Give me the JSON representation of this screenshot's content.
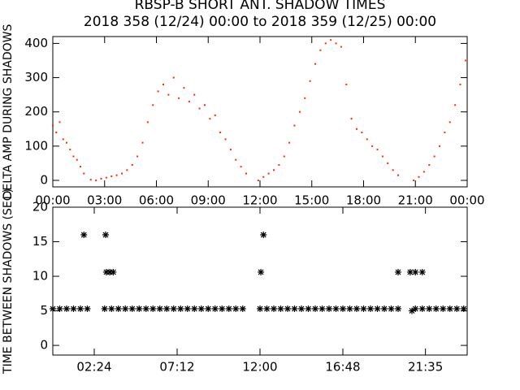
{
  "chart_data": [
    {
      "type": "scatter",
      "title": "RBSP-B SHORT ANT. SHADOW TIMES",
      "subtitle": "2018 358 (12/24) 00:00 to 2018 359 (12/25) 00:00",
      "ylabel": "DELTA AMP DURING SHADOWS",
      "color": "#ff2a00",
      "marker": "dot",
      "xlim": [
        0,
        24
      ],
      "ylim": [
        -19,
        420
      ],
      "xticks": [
        {
          "value": 0,
          "label": "00:00"
        },
        {
          "value": 3,
          "label": "03:00"
        },
        {
          "value": 6,
          "label": "06:00"
        },
        {
          "value": 9,
          "label": "09:00"
        },
        {
          "value": 12,
          "label": "12:00"
        },
        {
          "value": 15,
          "label": "15:00"
        },
        {
          "value": 18,
          "label": "18:00"
        },
        {
          "value": 21,
          "label": "21:00"
        },
        {
          "value": 24,
          "label": "00:00"
        }
      ],
      "yticks": [
        0,
        100,
        200,
        300,
        400
      ],
      "x": [
        0,
        0.2,
        0.4,
        0.6,
        0.8,
        1.0,
        1.2,
        1.4,
        1.6,
        1.8,
        2.2,
        2.5,
        2.8,
        3.1,
        3.4,
        3.7,
        4.0,
        4.3,
        4.6,
        4.9,
        5.2,
        5.5,
        5.8,
        6.1,
        6.4,
        6.7,
        7.0,
        7.3,
        7.6,
        7.9,
        8.2,
        8.5,
        8.8,
        9.1,
        9.4,
        9.7,
        10.0,
        10.3,
        10.6,
        10.9,
        11.2,
        11.9,
        12.2,
        12.5,
        12.8,
        13.1,
        13.4,
        13.7,
        14.0,
        14.3,
        14.6,
        14.9,
        15.2,
        15.5,
        15.8,
        16.1,
        16.4,
        16.7,
        17.0,
        17.3,
        17.6,
        17.9,
        18.2,
        18.5,
        18.8,
        19.1,
        19.4,
        19.7,
        20.0,
        20.9,
        21.2,
        21.5,
        21.8,
        22.1,
        22.4,
        22.7,
        23.0,
        23.3,
        23.6,
        23.9
      ],
      "values": [
        160,
        140,
        170,
        120,
        110,
        90,
        70,
        60,
        40,
        20,
        2,
        0,
        5,
        8,
        12,
        15,
        20,
        30,
        45,
        70,
        110,
        170,
        220,
        260,
        280,
        250,
        300,
        240,
        270,
        230,
        250,
        210,
        220,
        180,
        190,
        140,
        120,
        90,
        60,
        40,
        20,
        0,
        10,
        20,
        30,
        45,
        70,
        110,
        160,
        200,
        240,
        290,
        340,
        380,
        400,
        410,
        400,
        390,
        280,
        180,
        150,
        140,
        120,
        100,
        90,
        70,
        50,
        30,
        15,
        0,
        10,
        25,
        45,
        70,
        100,
        140,
        170,
        220,
        280,
        350
      ]
    },
    {
      "type": "scatter",
      "ylabel": "TIME BETWEEN SHADOWS (SEC)",
      "color": "#000000",
      "marker": "asterisk",
      "xlim": [
        0,
        24
      ],
      "ylim": [
        -1.4,
        20
      ],
      "xticks": [
        {
          "value": 2.4,
          "label": "02:24"
        },
        {
          "value": 7.2,
          "label": "07:12"
        },
        {
          "value": 12,
          "label": "12:00"
        },
        {
          "value": 16.8,
          "label": "16:48"
        },
        {
          "value": 21.583,
          "label": "21:35"
        }
      ],
      "yticks": [
        0,
        5,
        10,
        15,
        20
      ],
      "x": [
        0,
        0.4,
        0.8,
        1.2,
        1.6,
        2.0,
        3.0,
        3.4,
        3.8,
        4.2,
        4.6,
        5.0,
        5.4,
        5.8,
        6.2,
        6.6,
        7.0,
        7.4,
        7.8,
        8.2,
        8.6,
        9.0,
        9.4,
        9.8,
        10.2,
        10.6,
        11.0,
        12.0,
        12.4,
        12.8,
        13.2,
        13.6,
        14.0,
        14.4,
        14.8,
        15.2,
        15.6,
        16.0,
        16.4,
        16.8,
        17.2,
        17.6,
        18.0,
        18.4,
        18.8,
        19.2,
        19.6,
        20.0,
        21.0,
        21.4,
        21.8,
        22.2,
        22.6,
        23.0,
        23.4,
        23.8,
        1.8,
        3.06,
        12.2,
        3.1,
        3.3,
        3.5,
        12.05,
        20.0,
        20.7,
        21.0,
        21.4,
        20.8
      ],
      "values": [
        5.3,
        5.3,
        5.3,
        5.3,
        5.3,
        5.3,
        5.3,
        5.3,
        5.3,
        5.3,
        5.3,
        5.3,
        5.3,
        5.3,
        5.3,
        5.3,
        5.3,
        5.3,
        5.3,
        5.3,
        5.3,
        5.3,
        5.3,
        5.3,
        5.3,
        5.3,
        5.3,
        5.3,
        5.3,
        5.3,
        5.3,
        5.3,
        5.3,
        5.3,
        5.3,
        5.3,
        5.3,
        5.3,
        5.3,
        5.3,
        5.3,
        5.3,
        5.3,
        5.3,
        5.3,
        5.3,
        5.3,
        5.3,
        5.3,
        5.3,
        5.3,
        5.3,
        5.3,
        5.3,
        5.3,
        5.3,
        16,
        16,
        16,
        10.6,
        10.6,
        10.6,
        10.6,
        10.6,
        10.6,
        10.6,
        10.6,
        5
      ]
    }
  ]
}
